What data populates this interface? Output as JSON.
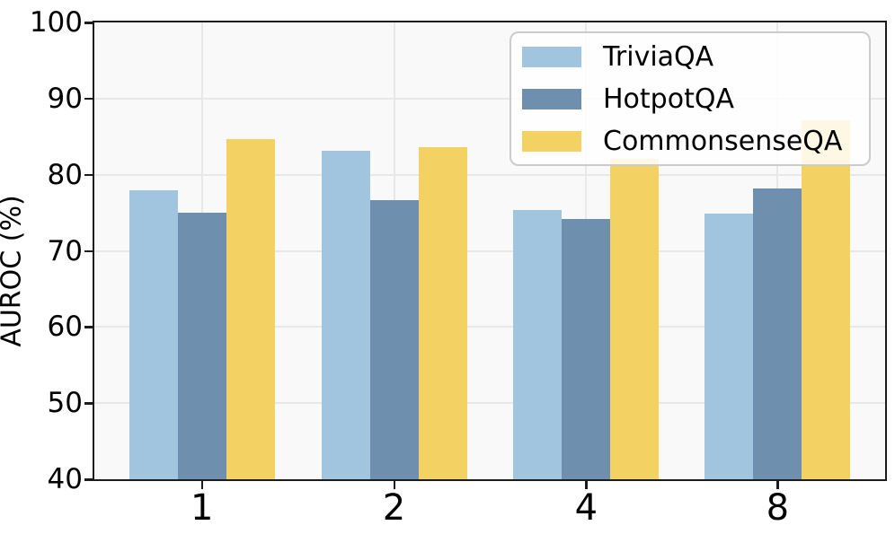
{
  "chart_data": {
    "type": "bar",
    "title": "",
    "xlabel": "",
    "ylabel": "AUROC (%)",
    "categories": [
      "1",
      "2",
      "4",
      "8"
    ],
    "series": [
      {
        "name": "TriviaQA",
        "color": "#a1c5de",
        "values": [
          78.0,
          83.1,
          75.4,
          74.9
        ]
      },
      {
        "name": "HotpotQA",
        "color": "#6e90ae",
        "values": [
          75.0,
          76.7,
          74.2,
          78.2
        ]
      },
      {
        "name": "CommonsenseQA",
        "color": "#f3d163",
        "values": [
          84.7,
          83.6,
          82.1,
          87.1
        ]
      }
    ],
    "ylim": [
      40,
      100
    ],
    "yticks": [
      40,
      50,
      60,
      70,
      80,
      90,
      100
    ],
    "grid": true,
    "legend_position": "upper right",
    "colors": {
      "plot_background": "#f9f9f9",
      "figure_background": "#ffffff",
      "gridline": "#e8e8e8",
      "spine": "#1c1c1c",
      "text": "#000000",
      "legend_border": "#cccccc"
    }
  }
}
